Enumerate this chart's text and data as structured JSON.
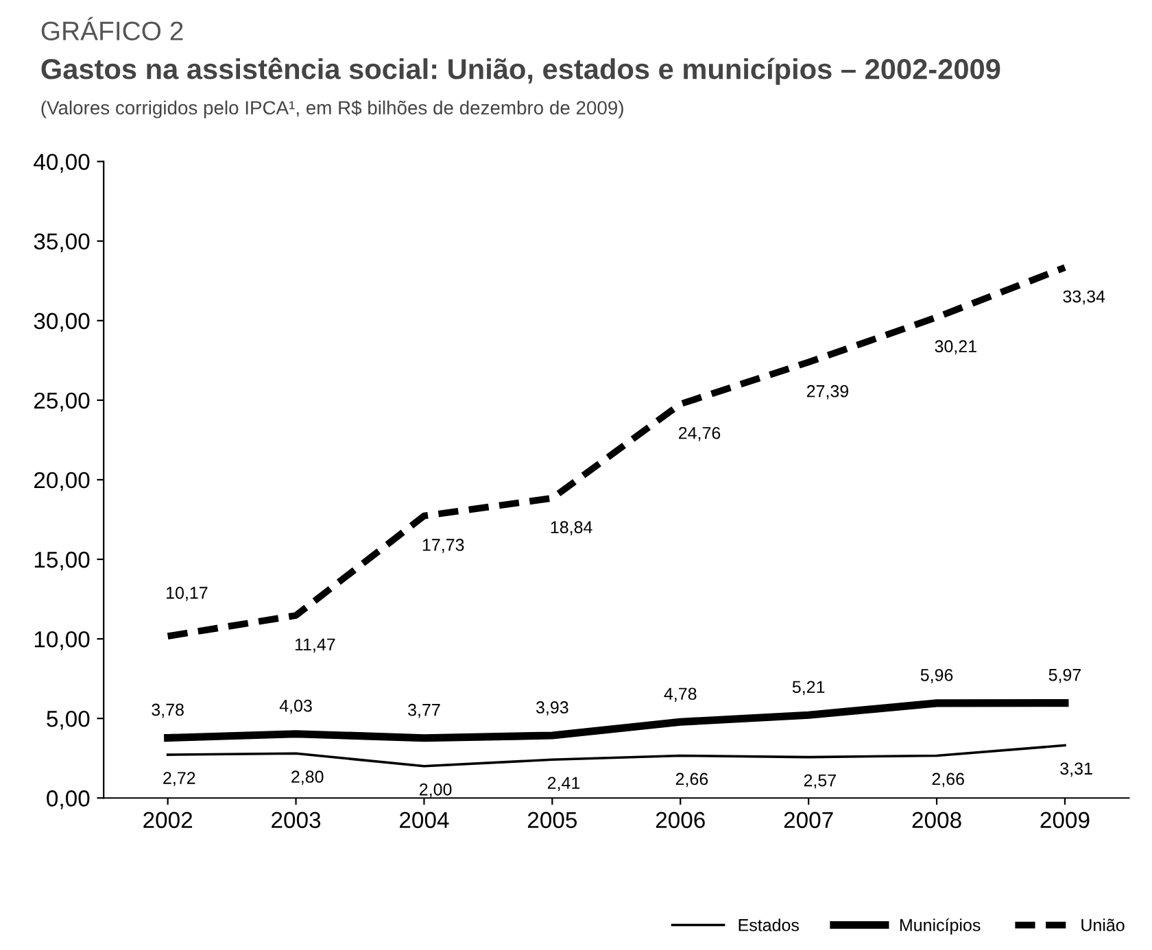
{
  "chart_data": {
    "type": "line",
    "title": "Gastos na assistência social: União, estados e municípios – 2002-2009",
    "subtitle": "(Valores corrigidos pelo IPCA¹, em R$ bilhões de dezembro de 2009)",
    "annotations": [
      "GRÁFICO 2"
    ],
    "categories": [
      "2002",
      "2003",
      "2004",
      "2005",
      "2006",
      "2007",
      "2008",
      "2009"
    ],
    "series": [
      {
        "name": "Estados",
        "color": "#000000",
        "line_style": "solid",
        "values": [
          2.72,
          2.8,
          2.0,
          2.41,
          2.66,
          2.57,
          2.66,
          3.31
        ],
        "value_labels": [
          "2,72",
          "2,80",
          "2,00",
          "2,41",
          "2,66",
          "2,57",
          "2,66",
          "3,31"
        ]
      },
      {
        "name": "Municípios",
        "color": "#000000",
        "line_style": "solid",
        "values": [
          3.78,
          4.03,
          3.77,
          3.93,
          4.78,
          5.21,
          5.96,
          5.97
        ],
        "value_labels": [
          "3,78",
          "4,03",
          "3,77",
          "3,93",
          "4,78",
          "5,21",
          "5,96",
          "5,97"
        ]
      },
      {
        "name": "União",
        "color": "#000000",
        "line_style": "dashed",
        "values": [
          10.17,
          11.47,
          17.73,
          18.84,
          24.76,
          27.39,
          30.21,
          33.34
        ],
        "value_labels": [
          "10,17",
          "11,47",
          "17,73",
          "18,84",
          "24,76",
          "27,39",
          "30,21",
          "33,34"
        ]
      }
    ],
    "ylim": [
      0,
      40
    ],
    "yticks": [
      {
        "value": 0,
        "label": "0,00"
      },
      {
        "value": 5,
        "label": "5,00"
      },
      {
        "value": 10,
        "label": "10,00"
      },
      {
        "value": 15,
        "label": "15,00"
      },
      {
        "value": 20,
        "label": "20,00"
      },
      {
        "value": 25,
        "label": "25,00"
      },
      {
        "value": 30,
        "label": "30,00"
      },
      {
        "value": 35,
        "label": "35,00"
      },
      {
        "value": 40,
        "label": "40,00"
      }
    ],
    "grid": false,
    "legend": "bottom right",
    "marker": "none"
  }
}
